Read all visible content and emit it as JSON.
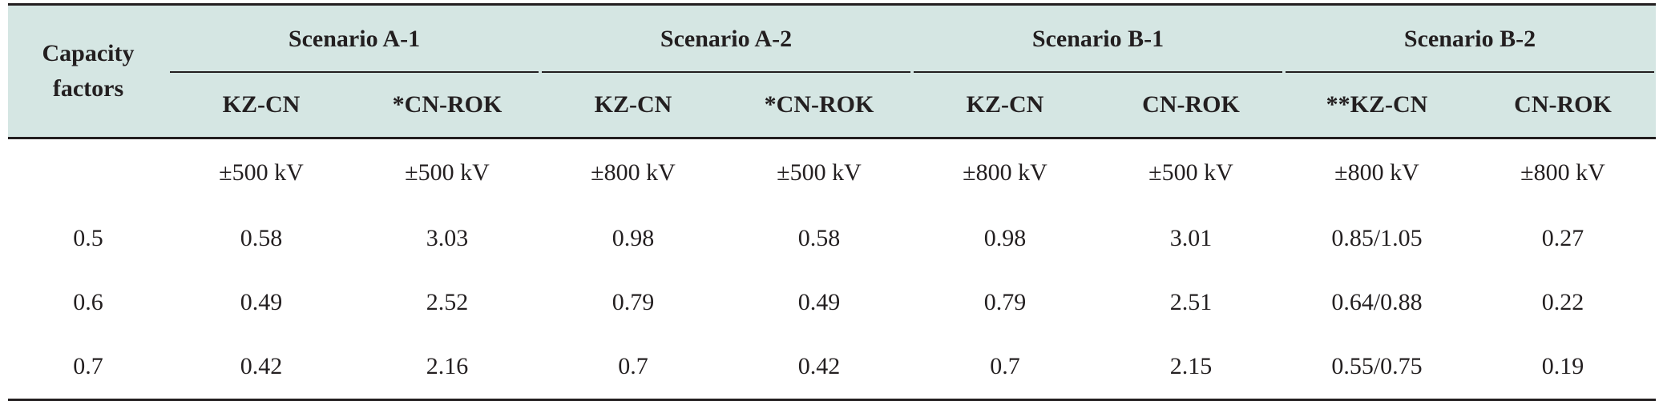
{
  "table": {
    "corner_label": "Capacity factors",
    "groups": [
      "Scenario A-1",
      "Scenario A-2",
      "Scenario B-1",
      "Scenario B-2"
    ],
    "subheaders": [
      "KZ-CN",
      "*CN-ROK",
      "KZ-CN",
      "*CN-ROK",
      "KZ-CN",
      "CN-ROK",
      "**KZ-CN",
      "CN-ROK"
    ],
    "rows": [
      {
        "factor": "",
        "cells": [
          "±500 kV",
          "±500 kV",
          "±800 kV",
          "±500 kV",
          "±800 kV",
          "±500 kV",
          "±800 kV",
          "±800 kV"
        ]
      },
      {
        "factor": "0.5",
        "cells": [
          "0.58",
          "3.03",
          "0.98",
          "0.58",
          "0.98",
          "3.01",
          "0.85/1.05",
          "0.27"
        ]
      },
      {
        "factor": "0.6",
        "cells": [
          "0.49",
          "2.52",
          "0.79",
          "0.49",
          "0.79",
          "2.51",
          "0.64/0.88",
          "0.22"
        ]
      },
      {
        "factor": "0.7",
        "cells": [
          "0.42",
          "2.16",
          "0.7",
          "0.42",
          "0.7",
          "2.15",
          "0.55/0.75",
          "0.19"
        ]
      }
    ]
  },
  "colors": {
    "header_background": "#d5e6e3",
    "rule": "#231f20",
    "text": "#231f20"
  }
}
